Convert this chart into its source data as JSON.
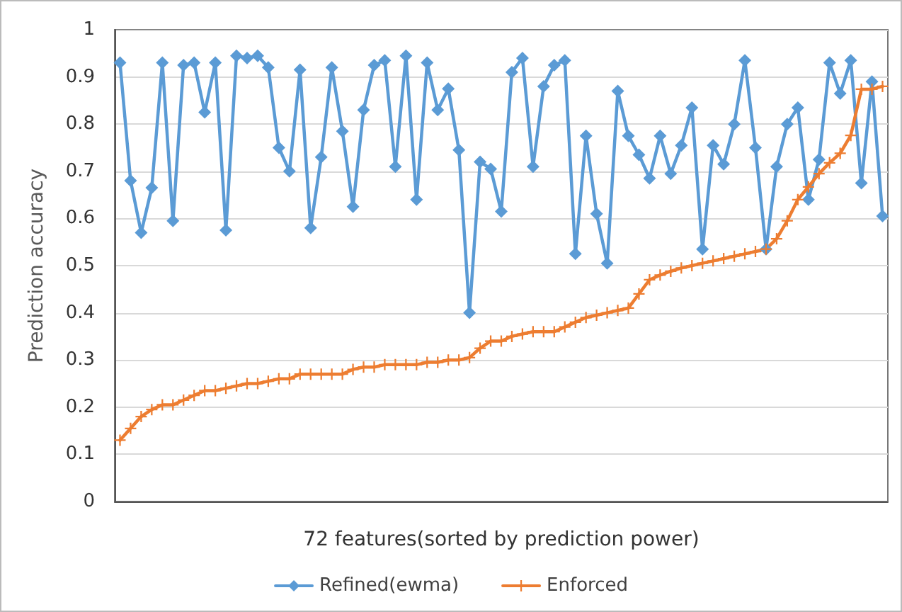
{
  "chart_data": {
    "type": "line",
    "xlabel": "72 features(sorted by prediction power)",
    "ylabel": "Prediction accuracy",
    "categories": [
      null,
      null,
      null,
      null,
      null,
      null,
      null,
      null,
      null,
      null,
      null,
      null,
      null,
      null,
      null,
      null,
      null,
      null,
      null,
      null,
      null,
      null,
      null,
      null,
      null,
      null,
      null,
      null,
      null,
      null,
      null,
      null,
      null,
      null,
      null,
      null,
      null,
      null,
      null,
      null,
      null,
      null,
      null,
      null,
      null,
      null,
      null,
      null,
      null,
      null,
      null,
      null,
      null,
      null,
      null,
      null,
      null,
      null,
      null,
      null,
      null,
      null,
      null,
      null,
      null,
      null,
      null,
      null,
      null,
      null,
      null,
      null,
      null
    ],
    "series": [
      {
        "name": "Refined(ewma)",
        "color": "#5b9bd5",
        "marker": "diamond",
        "values": [
          0.93,
          0.68,
          0.57,
          0.665,
          0.93,
          0.595,
          0.925,
          0.93,
          0.825,
          0.93,
          0.575,
          0.945,
          0.94,
          0.945,
          0.92,
          0.75,
          0.7,
          0.915,
          0.58,
          0.73,
          0.92,
          0.785,
          0.625,
          0.83,
          0.925,
          0.935,
          0.71,
          0.945,
          0.64,
          0.93,
          0.83,
          0.875,
          0.745,
          0.4,
          0.72,
          0.705,
          0.615,
          0.91,
          0.94,
          0.71,
          0.88,
          0.925,
          0.935,
          0.525,
          0.775,
          0.61,
          0.505,
          0.87,
          0.775,
          0.735,
          0.685,
          0.775,
          0.695,
          0.755,
          0.835,
          0.535,
          0.755,
          0.715,
          0.8,
          0.935,
          0.75,
          0.535,
          0.71,
          0.8,
          0.835,
          0.64,
          0.725,
          0.93,
          0.865,
          0.935,
          0.675,
          0.89,
          0.605
        ]
      },
      {
        "name": "Enforced",
        "color": "#ed7d31",
        "marker": "cross",
        "values": [
          0.13,
          0.155,
          0.18,
          0.195,
          0.205,
          0.205,
          0.215,
          0.225,
          0.235,
          0.235,
          0.24,
          0.245,
          0.25,
          0.25,
          0.255,
          0.26,
          0.26,
          0.27,
          0.27,
          0.27,
          0.27,
          0.27,
          0.28,
          0.285,
          0.285,
          0.29,
          0.29,
          0.29,
          0.29,
          0.295,
          0.295,
          0.3,
          0.3,
          0.305,
          0.325,
          0.34,
          0.34,
          0.35,
          0.355,
          0.36,
          0.36,
          0.36,
          0.37,
          0.38,
          0.39,
          0.395,
          0.4,
          0.405,
          0.41,
          0.44,
          0.47,
          0.48,
          0.488,
          0.495,
          0.5,
          0.505,
          0.51,
          0.515,
          0.52,
          0.525,
          0.53,
          0.535,
          0.557,
          0.595,
          0.64,
          0.667,
          0.695,
          0.718,
          0.738,
          0.776,
          0.874,
          0.874,
          0.88
        ]
      }
    ],
    "ylim": [
      0,
      1
    ],
    "yticks": [
      0,
      0.1,
      0.2,
      0.3,
      0.4,
      0.5,
      0.6,
      0.7,
      0.8,
      0.9,
      1
    ],
    "grid": "y",
    "legend": "bottom",
    "tick_labels": "y",
    "line_style": "solid"
  }
}
